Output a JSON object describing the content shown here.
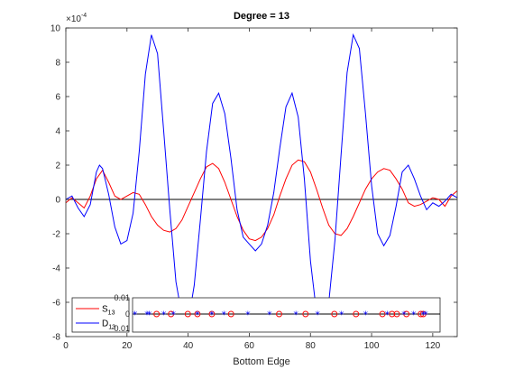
{
  "chart_data": {
    "type": "line",
    "title": "Degree = 13",
    "xlabel": "Bottom Edge",
    "ylabel": "",
    "xlim": [
      0,
      128
    ],
    "ylim": [
      -8,
      10
    ],
    "y_exponent": "×10^{-4}",
    "exp_base": "×10",
    "exp_power": "-4",
    "x_ticks": [
      0,
      20,
      40,
      60,
      80,
      100,
      120
    ],
    "y_ticks": [
      -8,
      -6,
      -4,
      -2,
      0,
      2,
      4,
      6,
      8,
      10
    ],
    "grid": false,
    "zero_line": true,
    "legend": {
      "placement": "bottom-left",
      "entries": [
        {
          "label": "S",
          "subscript": "13",
          "color": "#ff0000"
        },
        {
          "label": "D",
          "subscript": "13",
          "color": "#0000ff"
        }
      ]
    },
    "series": [
      {
        "name": "S13",
        "color": "#ff0000",
        "x": [
          0,
          2,
          4,
          6,
          8,
          10,
          12,
          14,
          16,
          18,
          20,
          22,
          24,
          26,
          28,
          30,
          32,
          34,
          36,
          38,
          40,
          42,
          44,
          46,
          48,
          50,
          52,
          54,
          56,
          58,
          60,
          62,
          64,
          66,
          68,
          70,
          72,
          74,
          76,
          78,
          80,
          82,
          84,
          86,
          88,
          90,
          92,
          94,
          96,
          98,
          100,
          102,
          104,
          106,
          108,
          110,
          112,
          114,
          116,
          118,
          120,
          122,
          124,
          126,
          128
        ],
        "y": [
          -0.2,
          0.1,
          -0.2,
          -0.5,
          0.2,
          1.2,
          1.7,
          1.0,
          0.2,
          0.0,
          0.2,
          0.4,
          0.3,
          -0.3,
          -1.0,
          -1.5,
          -1.8,
          -1.9,
          -1.7,
          -1.2,
          -0.4,
          0.4,
          1.2,
          1.9,
          2.1,
          1.8,
          1.0,
          0.0,
          -1.0,
          -1.8,
          -2.3,
          -2.4,
          -2.2,
          -1.7,
          -0.9,
          0.2,
          1.2,
          2.0,
          2.3,
          2.2,
          1.6,
          0.6,
          -0.5,
          -1.5,
          -2.0,
          -2.1,
          -1.7,
          -1.0,
          -0.2,
          0.6,
          1.2,
          1.6,
          1.8,
          1.7,
          1.2,
          0.6,
          -0.2,
          -0.4,
          -0.3,
          -0.1,
          0.1,
          0.0,
          -0.4,
          0.2,
          0.5
        ]
      },
      {
        "name": "D13",
        "color": "#0000ff",
        "x": [
          0,
          2,
          4,
          6,
          8,
          10,
          11,
          12,
          14,
          16,
          18,
          20,
          22,
          24,
          26,
          28,
          30,
          32,
          34,
          36,
          38,
          40,
          42,
          44,
          46,
          48,
          50,
          52,
          54,
          56,
          58,
          60,
          62,
          64,
          66,
          68,
          70,
          72,
          74,
          76,
          78,
          80,
          82,
          84,
          86,
          88,
          90,
          92,
          94,
          96,
          98,
          100,
          102,
          104,
          106,
          108,
          110,
          112,
          114,
          116,
          118,
          120,
          122,
          124,
          126,
          128
        ],
        "y": [
          0.0,
          0.2,
          -0.5,
          -1.0,
          -0.3,
          1.6,
          2.0,
          1.8,
          0.3,
          -1.6,
          -2.6,
          -2.4,
          -0.8,
          2.8,
          7.3,
          9.6,
          8.5,
          4.0,
          -0.6,
          -4.8,
          -6.8,
          -7.2,
          -5.0,
          -1.2,
          2.8,
          5.6,
          6.2,
          5.0,
          2.4,
          -0.6,
          -2.2,
          -2.6,
          -3.0,
          -2.6,
          -1.5,
          0.4,
          3.0,
          5.4,
          6.2,
          4.8,
          1.2,
          -3.6,
          -6.6,
          -7.4,
          -6.0,
          -2.4,
          2.6,
          7.4,
          9.6,
          8.8,
          5.0,
          0.8,
          -2.0,
          -2.7,
          -2.1,
          -0.4,
          1.6,
          2.0,
          1.2,
          0.2,
          -0.6,
          -0.2,
          -0.4,
          -0.1,
          0.3,
          0.1
        ]
      }
    ],
    "inset": {
      "ylim": [
        -0.01,
        0.01
      ],
      "y_ticks": [
        "0.01",
        "0",
        "-0.01"
      ],
      "red_circles_x": [
        10,
        16,
        23,
        27,
        33,
        41,
        61,
        72,
        84,
        93,
        104,
        108,
        110,
        114,
        120,
        121
      ],
      "blue_stars_x": [
        1,
        6,
        7,
        13,
        17,
        27,
        33,
        38,
        48,
        57,
        68,
        77,
        87,
        97,
        106,
        113,
        117,
        121,
        122
      ]
    }
  }
}
